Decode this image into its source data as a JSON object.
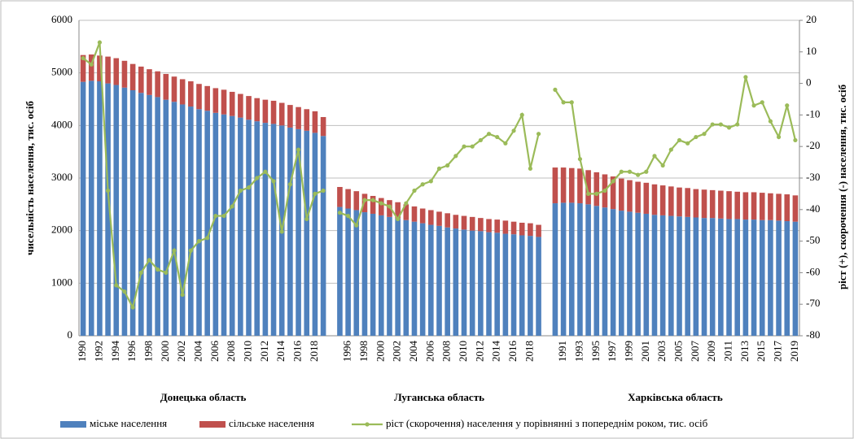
{
  "chart_data": {
    "type": "bar-line",
    "y_label": "чисельність населення, тис. осіб",
    "y2_label": "ріст (+), скорочення (-) населення, тис. осіб",
    "group_labels": [
      "Донецька область",
      "Луганська область",
      "Харківська область"
    ],
    "categories": [
      "1990",
      null,
      "1992",
      null,
      "1994",
      null,
      "1996",
      null,
      "1998",
      null,
      "2000",
      null,
      "2002",
      null,
      "2004",
      null,
      "2006",
      null,
      "2008",
      null,
      "2010",
      null,
      "2012",
      null,
      "2014",
      null,
      "2016",
      null,
      "2018",
      null,
      null,
      null,
      "1996",
      null,
      "1998",
      null,
      "2000",
      null,
      "2002",
      null,
      "2004",
      null,
      "2006",
      null,
      "2008",
      null,
      "2010",
      null,
      "2012",
      null,
      "2014",
      null,
      "2016",
      null,
      "2018",
      null,
      null,
      null,
      "1991",
      null,
      "1993",
      null,
      "1995",
      null,
      "1997",
      null,
      "1999",
      null,
      "2001",
      null,
      "2003",
      null,
      "2005",
      null,
      "2007",
      null,
      "2009",
      null,
      "2011",
      null,
      "2013",
      null,
      "2015",
      null,
      "2017",
      null,
      "2019"
    ],
    "series": [
      {
        "name": "міське населення",
        "color": "#4f81bd",
        "values": [
          4830,
          4850,
          4840,
          4800,
          4770,
          4720,
          4670,
          4620,
          4580,
          4540,
          4490,
          4450,
          4400,
          4360,
          4310,
          4280,
          4240,
          4210,
          4180,
          4150,
          4110,
          4080,
          4050,
          4030,
          4000,
          3960,
          3930,
          3900,
          3860,
          3800,
          null,
          2450,
          2420,
          2390,
          2350,
          2320,
          2290,
          2260,
          2230,
          2200,
          2170,
          2140,
          2110,
          2090,
          2060,
          2040,
          2020,
          2000,
          1990,
          1970,
          1960,
          1940,
          1930,
          1910,
          1900,
          1880,
          null,
          2520,
          2530,
          2530,
          2520,
          2500,
          2470,
          2440,
          2410,
          2380,
          2360,
          2340,
          2320,
          2300,
          2290,
          2280,
          2270,
          2260,
          2250,
          2240,
          2240,
          2230,
          2220,
          2220,
          2210,
          2210,
          2200,
          2200,
          2190,
          2180,
          2170
        ]
      },
      {
        "name": "сільське населення",
        "color": "#c0504d",
        "values": [
          510,
          500,
          490,
          510,
          510,
          510,
          500,
          500,
          490,
          490,
          490,
          480,
          480,
          480,
          480,
          470,
          470,
          470,
          460,
          450,
          450,
          440,
          440,
          440,
          430,
          430,
          420,
          410,
          410,
          360,
          null,
          380,
          370,
          360,
          350,
          340,
          330,
          320,
          310,
          300,
          290,
          280,
          280,
          270,
          270,
          260,
          260,
          260,
          250,
          250,
          250,
          250,
          240,
          240,
          240,
          230,
          null,
          680,
          670,
          660,
          660,
          650,
          640,
          630,
          620,
          610,
          600,
          590,
          590,
          580,
          570,
          560,
          550,
          550,
          540,
          540,
          530,
          530,
          530,
          520,
          520,
          520,
          520,
          510,
          510,
          510,
          500
        ]
      },
      {
        "name": "ріст (скорочення) населення у порівнянні з попереднім роком, тис. осіб",
        "color": "#9bbb59",
        "axis": "y2",
        "values": [
          8,
          6,
          13,
          -34,
          -64,
          -66,
          -71,
          -60,
          -56,
          -59,
          -60,
          -53,
          -67,
          -53,
          -50,
          -49,
          -42,
          -42,
          -39,
          -34,
          -33,
          -30,
          -28,
          -31,
          -47,
          -32,
          -21,
          -43,
          -35,
          -34,
          null,
          -41,
          -42,
          -45,
          -37,
          -37,
          -38,
          -39,
          -43,
          -38,
          -34,
          -32,
          -31,
          -27,
          -26,
          -23,
          -20,
          -20,
          -18,
          -16,
          -17,
          -19,
          -15,
          -10,
          -27,
          -16,
          null,
          -2,
          -6,
          -6,
          -24,
          -35,
          -35,
          -34,
          -31,
          -28,
          -28,
          -29,
          -28,
          -23,
          -26,
          -21,
          -18,
          -19,
          -17,
          -16,
          -13,
          -13,
          -14,
          -13,
          2,
          -7,
          -6,
          -12,
          -17,
          -7,
          -18
        ]
      }
    ],
    "ylim": [
      0,
      6000
    ],
    "yticks": [
      0,
      1000,
      2000,
      3000,
      4000,
      5000,
      6000
    ],
    "y2lim": [
      -80,
      20
    ],
    "y2ticks": [
      -80,
      -70,
      -60,
      -50,
      -40,
      -30,
      -20,
      -10,
      0,
      10,
      20
    ],
    "grid": true
  }
}
